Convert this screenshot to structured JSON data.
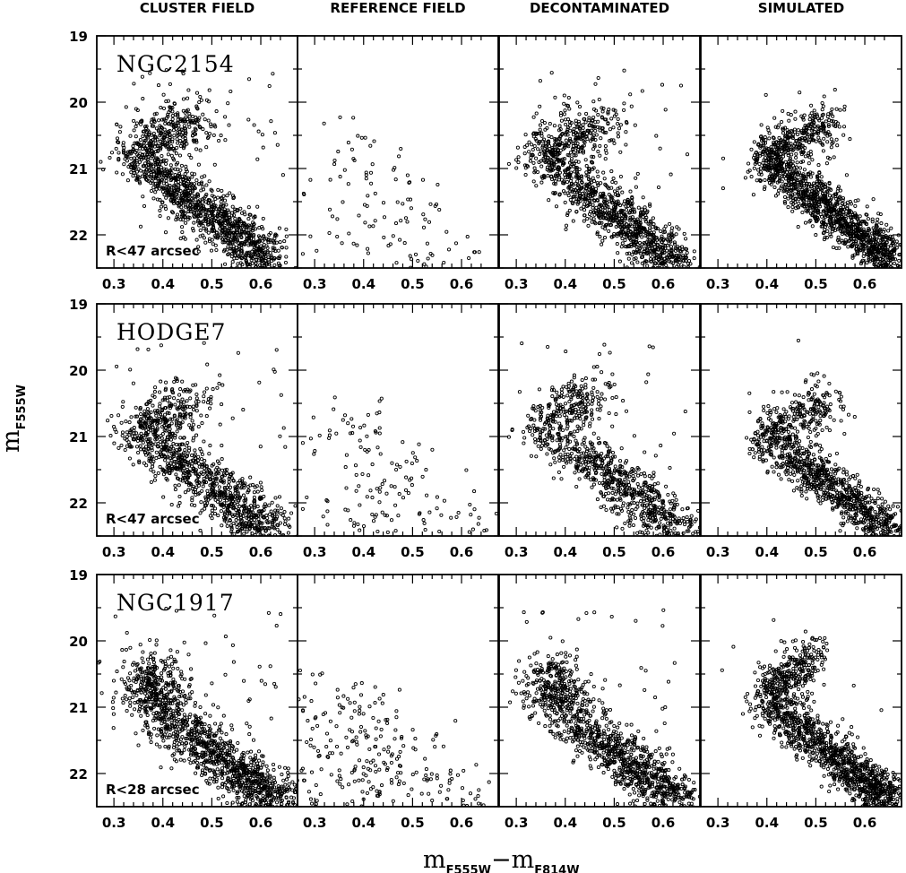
{
  "chart_data": {
    "type": "scatter",
    "columns": [
      "CLUSTER FIELD",
      "REFERENCE FIELD",
      "DECONTAMINATED",
      "SIMULATED"
    ],
    "xlabel": {
      "main": "m",
      "sub1": "F555W",
      "dash": "−",
      "main2": "m",
      "sub2": "F814W"
    },
    "ylabel": {
      "main": "m",
      "sub": "F555W"
    },
    "xlim": [
      0.265,
      0.675
    ],
    "ylim": [
      22.5,
      19.0
    ],
    "xticks": [
      0.3,
      0.4,
      0.5,
      0.6
    ],
    "yticks": [
      19,
      20,
      21,
      22
    ],
    "grid": false,
    "rows": [
      {
        "cluster": "NGC2154",
        "radius_label": "R<47 arcsec",
        "panels": {
          "cluster_field": {
            "ms_top": [
              0.34,
              20.8
            ],
            "ms_bottom": [
              0.62,
              22.4
            ],
            "turnoff_top": [
              0.47,
              20.2
            ],
            "n": 1400,
            "spread": 0.045,
            "extra_bright": 40
          },
          "reference_field": {
            "n": 110,
            "xrange": [
              0.33,
              0.66
            ],
            "yrange": [
              20.1,
              22.5
            ]
          },
          "decontaminated": {
            "ms_top": [
              0.35,
              20.8
            ],
            "ms_bottom": [
              0.63,
              22.45
            ],
            "turnoff_top": [
              0.48,
              20.25
            ],
            "n": 1250,
            "spread": 0.045,
            "extra_bright": 30
          },
          "simulated": {
            "ms_top": [
              0.39,
              20.85
            ],
            "ms_bottom": [
              0.66,
              22.4
            ],
            "turnoff_top": [
              0.53,
              20.3
            ],
            "n": 1500,
            "spread": 0.03,
            "extra_bright": 5
          }
        }
      },
      {
        "cluster": "HODGE7",
        "radius_label": "R<47 arcsec",
        "panels": {
          "cluster_field": {
            "ms_top": [
              0.36,
              21.0
            ],
            "ms_bottom": [
              0.63,
              22.45
            ],
            "turnoff_top": [
              0.45,
              20.4
            ],
            "n": 1100,
            "spread": 0.05,
            "extra_bright": 40
          },
          "reference_field": {
            "n": 140,
            "xrange": [
              0.33,
              0.66
            ],
            "yrange": [
              20.4,
              22.5
            ]
          },
          "decontaminated": {
            "ms_top": [
              0.36,
              20.9
            ],
            "ms_bottom": [
              0.64,
              22.45
            ],
            "turnoff_top": [
              0.45,
              20.3
            ],
            "n": 950,
            "spread": 0.05,
            "extra_bright": 30
          },
          "simulated": {
            "ms_top": [
              0.39,
              21.0
            ],
            "ms_bottom": [
              0.66,
              22.45
            ],
            "turnoff_top": [
              0.53,
              20.45
            ],
            "n": 1100,
            "spread": 0.03,
            "extra_bright": 5
          }
        }
      },
      {
        "cluster": "NGC1917",
        "radius_label": "R<28 arcsec",
        "panels": {
          "cluster_field": {
            "ms_top": [
              0.38,
              21.0
            ],
            "ms_bottom": [
              0.64,
              22.45
            ],
            "turnoff_top": [
              0.38,
              20.4
            ],
            "n": 1300,
            "spread": 0.05,
            "extra_bright": 40
          },
          "reference_field": {
            "n": 260,
            "xrange": [
              0.27,
              0.66
            ],
            "yrange": [
              20.3,
              22.5
            ]
          },
          "decontaminated": {
            "ms_top": [
              0.38,
              21.0
            ],
            "ms_bottom": [
              0.64,
              22.45
            ],
            "turnoff_top": [
              0.38,
              20.4
            ],
            "n": 1150,
            "spread": 0.05,
            "extra_bright": 30
          },
          "simulated": {
            "ms_top": [
              0.39,
              20.9
            ],
            "ms_bottom": [
              0.66,
              22.45
            ],
            "turnoff_top": [
              0.5,
              20.2
            ],
            "n": 1400,
            "spread": 0.03,
            "extra_bright": 10
          }
        }
      }
    ]
  }
}
